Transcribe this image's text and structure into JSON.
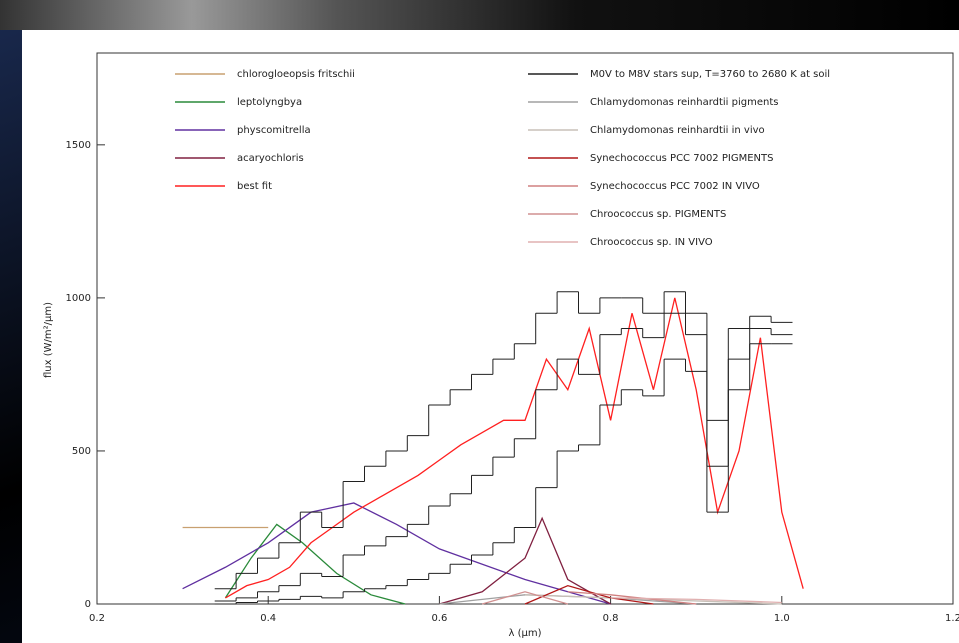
{
  "chart_data": {
    "type": "line",
    "x_label": "λ (µm)",
    "y_label": "flux (W/m²/µm)",
    "xlim": [
      0.2,
      1.2
    ],
    "xticks": [
      0.2,
      0.4,
      0.6,
      0.8,
      {
        "value": 1,
        "label": "1.0"
      },
      1.2
    ],
    "ylim": [
      0,
      1800
    ],
    "yticks": [
      0,
      500,
      1000,
      1500
    ],
    "series": [
      {
        "name": "chlorogloeopsis fritschii",
        "color": "#c8a070",
        "legend": "left",
        "x": [
          0.3,
          0.35,
          0.4
        ],
        "values": [
          250,
          250,
          250
        ]
      },
      {
        "name": "leptolyngbya",
        "color": "#2a8a3a",
        "legend": "left",
        "x": [
          0.35,
          0.38,
          0.41,
          0.44,
          0.48,
          0.52,
          0.56
        ],
        "values": [
          20,
          150,
          260,
          200,
          100,
          30,
          0
        ]
      },
      {
        "name": "physcomitrella",
        "color": "#6030a0",
        "legend": "left",
        "x": [
          0.3,
          0.35,
          0.4,
          0.45,
          0.5,
          0.55,
          0.6,
          0.7,
          0.8
        ],
        "values": [
          50,
          120,
          200,
          300,
          330,
          260,
          180,
          80,
          0
        ]
      },
      {
        "name": "acaryochloris",
        "color": "#802040",
        "legend": "left",
        "x": [
          0.6,
          0.65,
          0.7,
          0.72,
          0.75,
          0.8
        ],
        "values": [
          0,
          40,
          150,
          280,
          80,
          0
        ]
      },
      {
        "name": "best fit",
        "color": "#ff2020",
        "legend": "left",
        "x": [
          0.35,
          0.375,
          0.4,
          0.425,
          0.45,
          0.475,
          0.5,
          0.525,
          0.55,
          0.575,
          0.6,
          0.625,
          0.65,
          0.675,
          0.7,
          0.725,
          0.75,
          0.775,
          0.8,
          0.825,
          0.85,
          0.875,
          0.9,
          0.925,
          0.95,
          0.975,
          1.0,
          1.025
        ],
        "values": [
          20,
          60,
          80,
          120,
          200,
          250,
          300,
          340,
          380,
          420,
          470,
          520,
          560,
          600,
          600,
          800,
          700,
          900,
          600,
          950,
          700,
          1000,
          700,
          300,
          500,
          870,
          300,
          50
        ]
      },
      {
        "name": "M0V to M8V stars sup, T=3760 to 2680 K at soil",
        "color": "#202020",
        "legend": "right",
        "steps": true,
        "x": [
          0.35,
          0.375,
          0.4,
          0.425,
          0.45,
          0.475,
          0.5,
          0.525,
          0.55,
          0.575,
          0.6,
          0.625,
          0.65,
          0.675,
          0.7,
          0.725,
          0.75,
          0.775,
          0.8,
          0.825,
          0.85,
          0.875,
          0.9,
          0.925,
          0.95,
          0.975,
          1.0
        ],
        "values": [
          [
            50,
            100,
            150,
            200,
            300,
            250,
            400,
            450,
            500,
            550,
            650,
            700,
            750,
            800,
            850,
            950,
            1020,
            950,
            1000,
            1000,
            950,
            1020,
            950,
            600,
            900,
            940,
            920
          ],
          [
            10,
            20,
            40,
            60,
            100,
            90,
            160,
            190,
            220,
            260,
            320,
            360,
            420,
            480,
            540,
            700,
            800,
            750,
            880,
            900,
            870,
            950,
            880,
            450,
            800,
            900,
            880
          ],
          [
            0,
            5,
            10,
            15,
            25,
            20,
            40,
            50,
            60,
            80,
            100,
            130,
            160,
            200,
            250,
            380,
            500,
            520,
            650,
            700,
            680,
            800,
            760,
            300,
            700,
            850,
            850
          ]
        ]
      },
      {
        "name": "Chlamydomonas reinhardtii pigments",
        "color": "#a0a0a0",
        "legend": "right",
        "x": [
          0.6,
          0.7,
          0.8,
          0.9
        ],
        "values": [
          0,
          30,
          20,
          0
        ]
      },
      {
        "name": "Chlamydomonas reinhardtii in vivo",
        "color": "#c8c0b8",
        "legend": "right",
        "x": [
          0.7,
          0.8,
          0.9,
          1.0
        ],
        "values": [
          30,
          20,
          10,
          0
        ]
      },
      {
        "name": "Synechococcus PCC 7002 PIGMENTS",
        "color": "#b01818",
        "legend": "right",
        "x": [
          0.7,
          0.75,
          0.8,
          0.85
        ],
        "values": [
          0,
          60,
          20,
          0
        ]
      },
      {
        "name": "Synechococcus PCC 7002 IN VIVO",
        "color": "#d08080",
        "legend": "right",
        "x": [
          0.75,
          0.8,
          0.9
        ],
        "values": [
          40,
          30,
          0
        ]
      },
      {
        "name": "Chroococcus sp. PIGMENTS",
        "color": "#d09090",
        "legend": "right",
        "x": [
          0.65,
          0.7,
          0.75
        ],
        "values": [
          0,
          40,
          0
        ]
      },
      {
        "name": "Chroococcus sp. IN VIVO",
        "color": "#e0b0b0",
        "legend": "right",
        "x": [
          0.8,
          0.9,
          1.0
        ],
        "values": [
          20,
          15,
          5
        ]
      }
    ]
  }
}
